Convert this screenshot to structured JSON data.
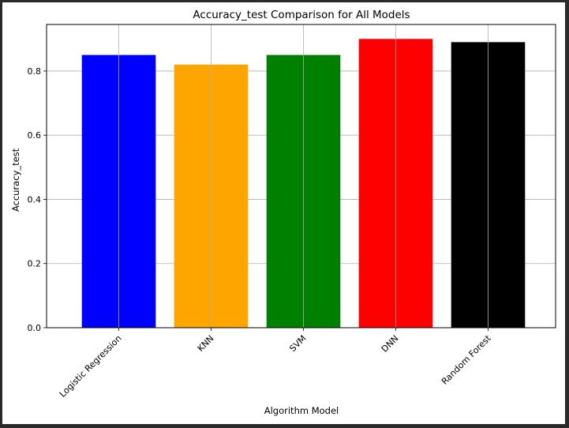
{
  "chart_data": {
    "type": "bar",
    "title": "Accuracy_test Comparison for All Models",
    "xlabel": "Algorithm Model",
    "ylabel": "Accuracy_test",
    "categories": [
      "Logistic Regression",
      "KNN",
      "SVM",
      "DNN",
      "Random Forest"
    ],
    "values": [
      0.85,
      0.82,
      0.85,
      0.9,
      0.89
    ],
    "colors": [
      "#0000ff",
      "#ffa500",
      "#008000",
      "#ff0000",
      "#000000"
    ],
    "ylim": [
      0,
      0.945
    ],
    "yticks": [
      0.0,
      0.2,
      0.4,
      0.6,
      0.8
    ],
    "ytick_labels": [
      "0.0",
      "0.2",
      "0.4",
      "0.6",
      "0.8"
    ],
    "grid": true,
    "legend": false
  }
}
